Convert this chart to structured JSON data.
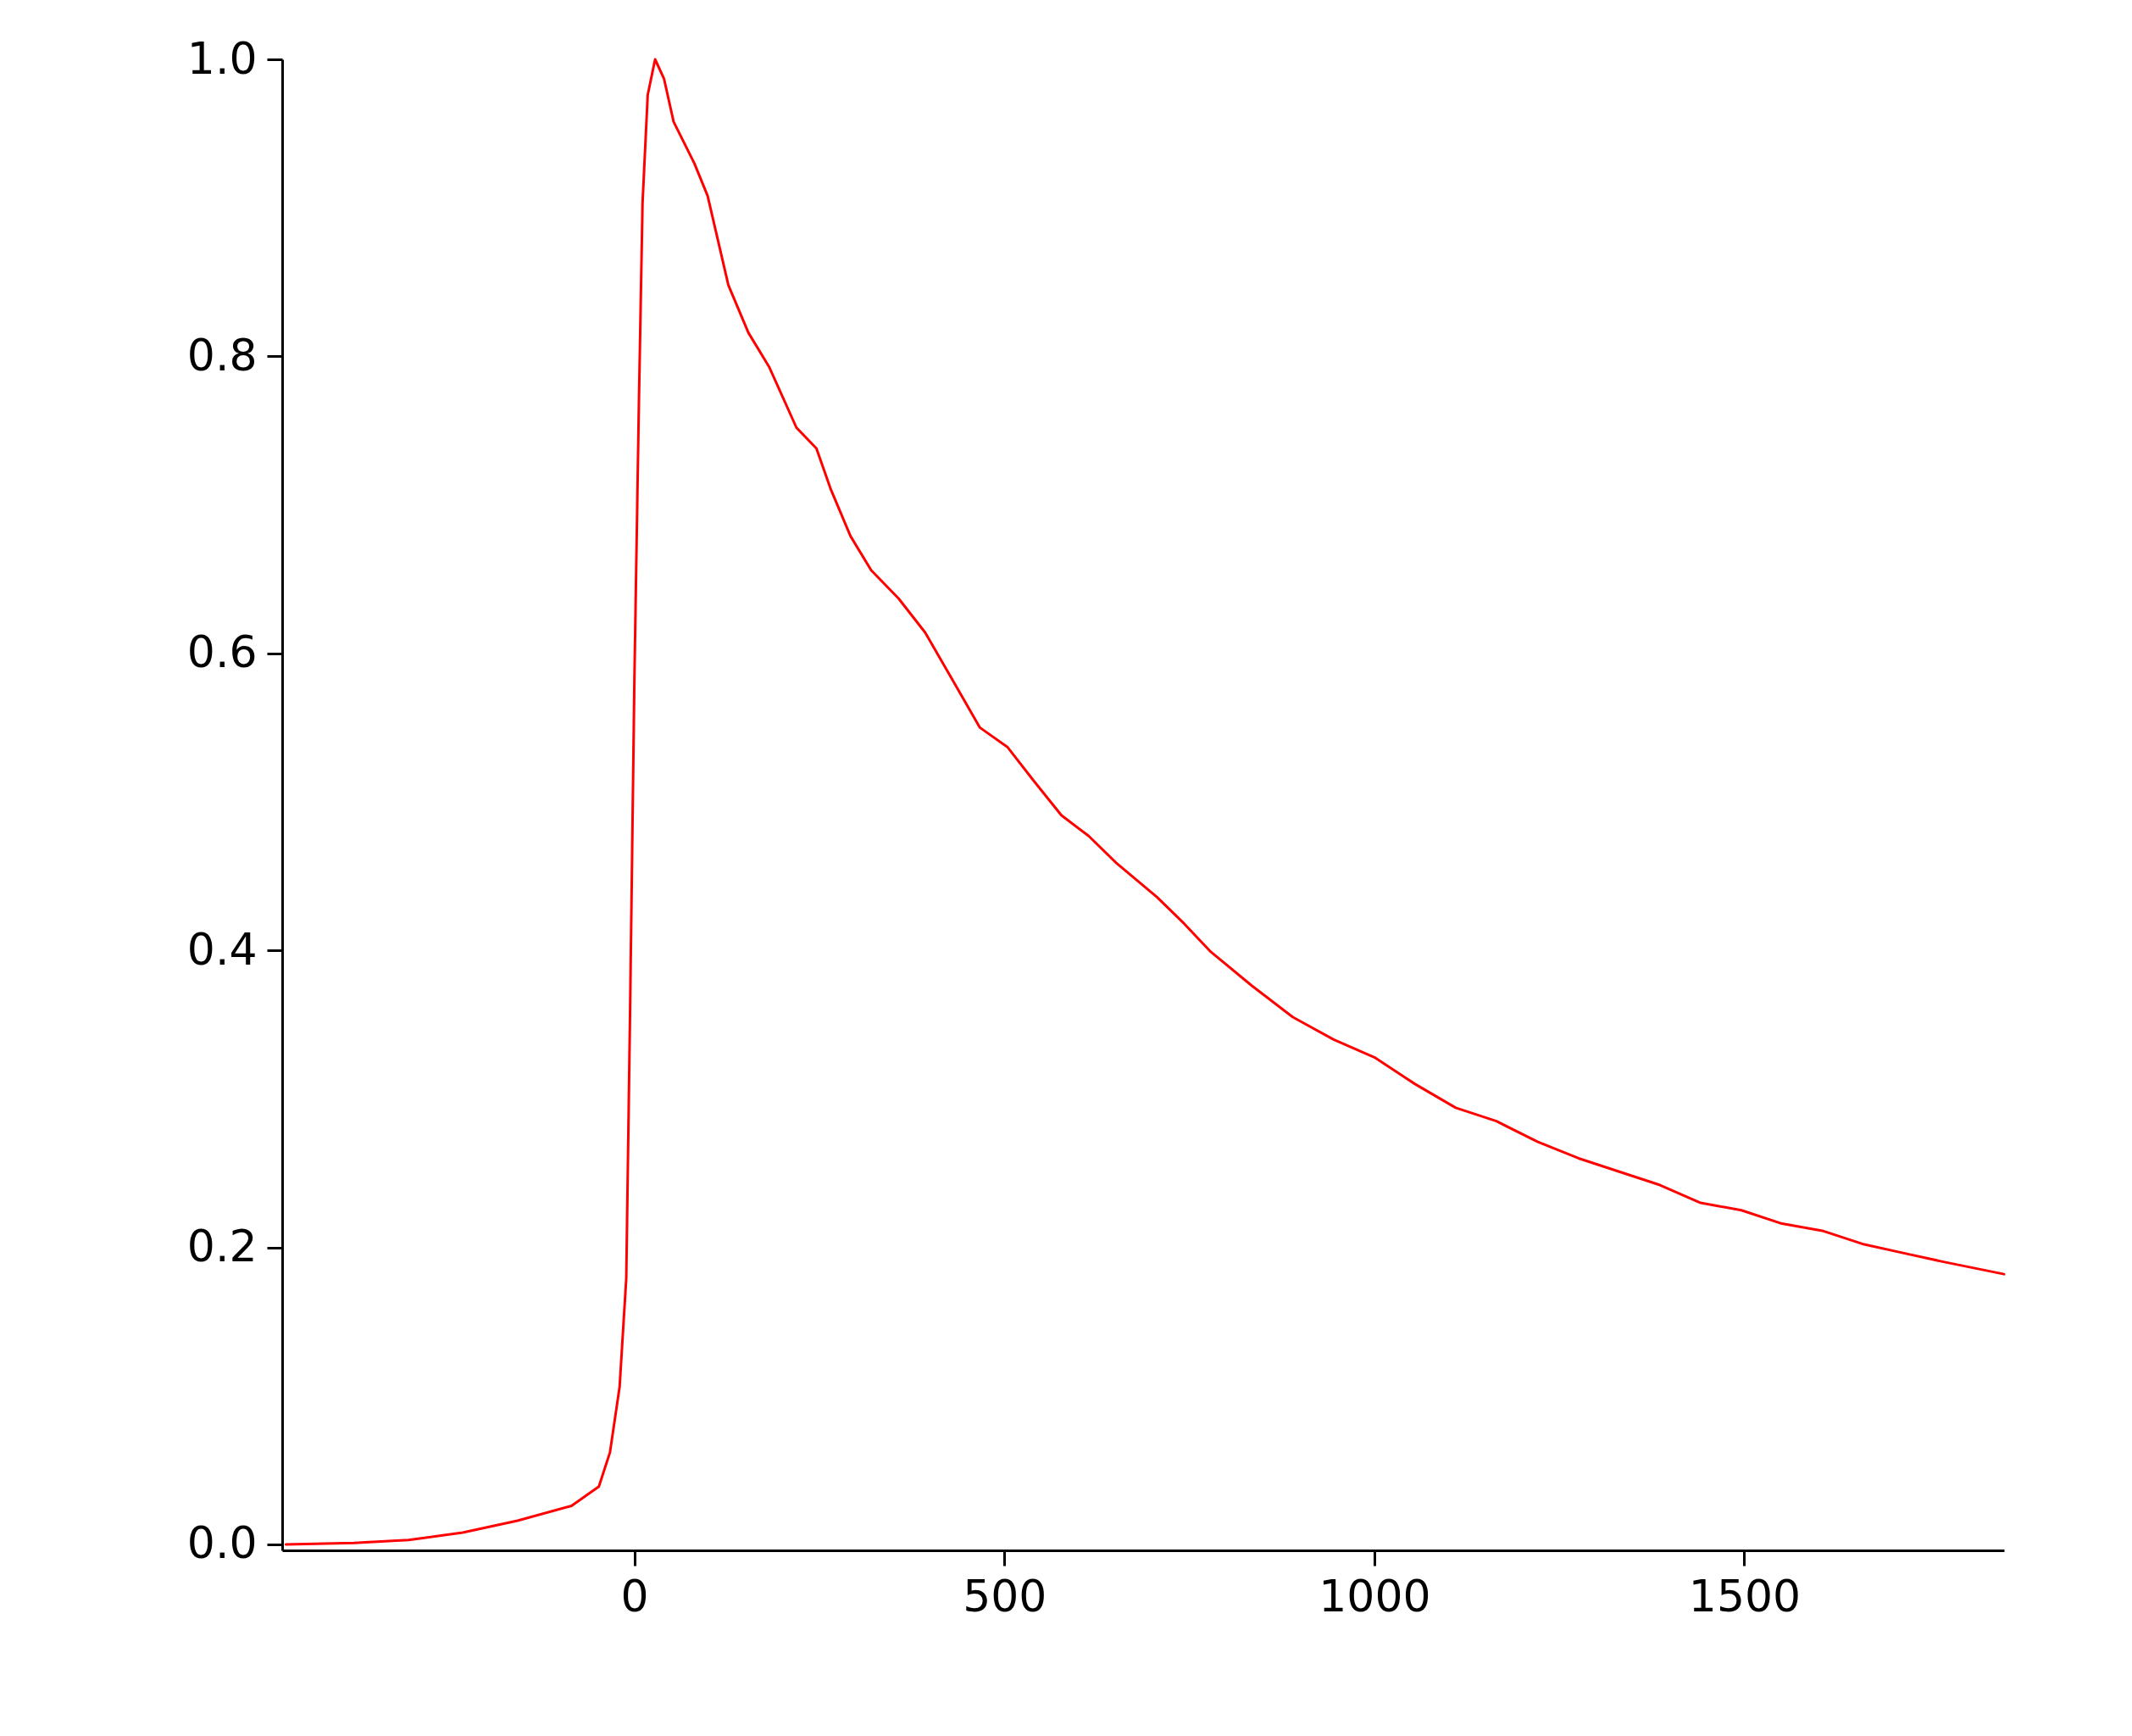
{
  "chart_data": {
    "type": "line",
    "x": [
      -471,
      -379,
      -305,
      -232,
      -158,
      -85,
      -48,
      -33,
      -20,
      -11,
      -6,
      0,
      6,
      11,
      18,
      28,
      40,
      53,
      81,
      99,
      127,
      154,
      182,
      219,
      246,
      265,
      292,
      320,
      357,
      393,
      430,
      467,
      504,
      540,
      577,
      614,
      651,
      706,
      743,
      779,
      835,
      890,
      945,
      1000,
      1055,
      1110,
      1165,
      1221,
      1276,
      1331,
      1386,
      1441,
      1496,
      1551,
      1607,
      1662,
      1717,
      1772,
      1851
    ],
    "series": [
      {
        "color": "#ff0000",
        "values": [
          0.0,
          0.001,
          0.003,
          0.008,
          0.016,
          0.026,
          0.039,
          0.062,
          0.106,
          0.179,
          0.353,
          0.582,
          0.766,
          0.903,
          0.976,
          1.0,
          0.987,
          0.958,
          0.93,
          0.908,
          0.848,
          0.816,
          0.793,
          0.752,
          0.738,
          0.711,
          0.679,
          0.656,
          0.637,
          0.614,
          0.582,
          0.55,
          0.537,
          0.514,
          0.491,
          0.477,
          0.459,
          0.436,
          0.418,
          0.399,
          0.376,
          0.355,
          0.34,
          0.328,
          0.31,
          0.294,
          0.285,
          0.271,
          0.26,
          0.251,
          0.242,
          0.23,
          0.225,
          0.216,
          0.211,
          0.202,
          0.196,
          0.19,
          0.182
        ]
      }
    ],
    "xlim": [
      -476,
      1851
    ],
    "ylim": [
      -0.004,
      1.0
    ],
    "xticks": [
      0,
      500,
      1000,
      1500
    ],
    "yticks": [
      {
        "value": 0,
        "label": "0.0"
      },
      {
        "value": 0.2,
        "label": "0.2"
      },
      {
        "value": 0.4,
        "label": "0.4"
      },
      {
        "value": 0.6,
        "label": "0.6"
      },
      {
        "value": 0.8,
        "label": "0.8"
      },
      {
        "value": 1.0,
        "label": "1.0"
      }
    ],
    "grid": false
  }
}
